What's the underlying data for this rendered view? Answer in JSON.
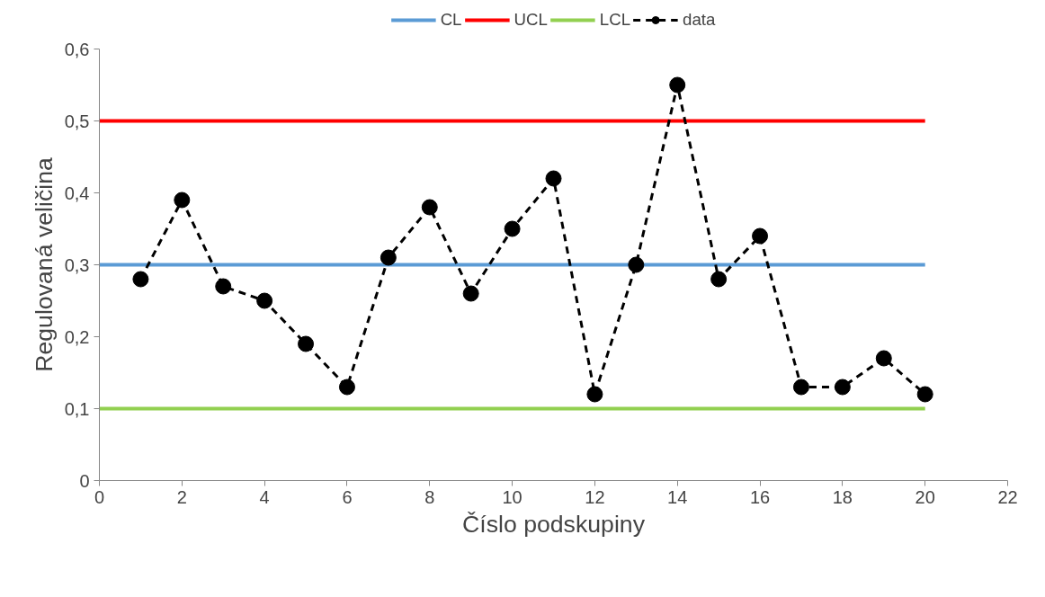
{
  "chart_data": {
    "type": "line",
    "xlabel": "Číslo podskupiny",
    "ylabel": "Regulovaná veličina",
    "xlim": [
      0,
      22
    ],
    "xticks": [
      0,
      2,
      4,
      6,
      8,
      10,
      12,
      14,
      16,
      18,
      20,
      22
    ],
    "ylim": [
      0,
      0.6
    ],
    "yticks": [
      0,
      {
        "value": 0.1,
        "label": "0,1"
      },
      {
        "value": 0.2,
        "label": "0,2"
      },
      {
        "value": 0.3,
        "label": "0,3"
      },
      {
        "value": 0.4,
        "label": "0,4"
      },
      {
        "value": 0.5,
        "label": "0,5"
      },
      {
        "value": 0.6,
        "label": "0,6"
      }
    ],
    "grid": false,
    "legend": "top",
    "series": [
      {
        "name": "CL",
        "color": "#5b9bd5",
        "x": [
          0,
          20
        ],
        "values": [
          0.3,
          0.3
        ],
        "line_style": "solid",
        "marker": "none"
      },
      {
        "name": "UCL",
        "color": "#ff0000",
        "x": [
          0,
          20
        ],
        "values": [
          0.5,
          0.5
        ],
        "line_style": "solid",
        "marker": "none"
      },
      {
        "name": "LCL",
        "color": "#92d050",
        "x": [
          0,
          20
        ],
        "values": [
          0.1,
          0.1
        ],
        "line_style": "solid",
        "marker": "none"
      },
      {
        "name": "data",
        "color": "#000000",
        "x": [
          1,
          2,
          3,
          4,
          5,
          6,
          7,
          8,
          9,
          10,
          11,
          12,
          13,
          14,
          15,
          16,
          17,
          18,
          19,
          20
        ],
        "values": [
          0.28,
          0.39,
          0.27,
          0.25,
          0.19,
          0.13,
          0.31,
          0.38,
          0.26,
          0.35,
          0.42,
          0.12,
          0.3,
          0.55,
          0.28,
          0.34,
          0.13,
          0.13,
          0.17,
          0.12
        ],
        "line_style": "dashed",
        "marker": "circle"
      }
    ]
  }
}
